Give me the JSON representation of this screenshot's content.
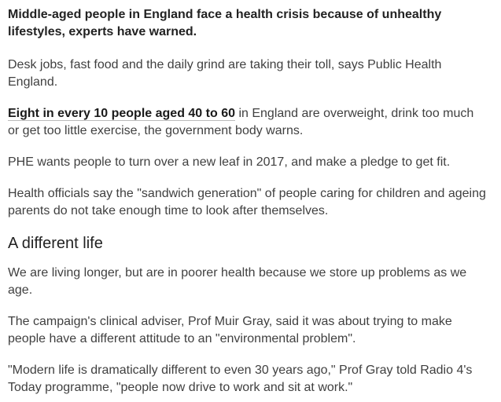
{
  "article": {
    "intro": "Middle-aged people in England face a health crisis because of unhealthy lifestyles, experts have warned.",
    "p1": "Desk jobs, fast food and the daily grind are taking their toll, says Public Health England.",
    "p2_link": "Eight in every 10 people aged 40 to 60",
    "p2_rest": " in England are overweight, drink too much or get too little exercise, the government body warns.",
    "p3": "PHE wants people to turn over a new leaf in 2017, and make a pledge to get fit.",
    "p4": "Health officials say the \"sandwich generation\" of people caring for children and ageing parents do not take enough time to look after themselves.",
    "subheading": "A different life",
    "p5": "We are living longer, but are in poorer health because we store up problems as we age.",
    "p6": "The campaign's clinical adviser, Prof Muir Gray, said it was about trying to make people have a different attitude to an \"environmental problem\".",
    "p7": "\"Modern life is dramatically different to even 30 years ago,\" Prof Gray told Radio 4's Today programme, \"people now drive to work and sit at work.\""
  }
}
